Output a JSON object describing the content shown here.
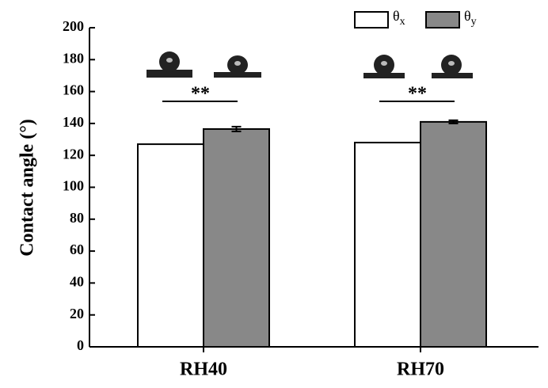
{
  "chart_data": {
    "type": "bar",
    "y_label": "Contact angle (°)",
    "categories": [
      "RH40",
      "RH70"
    ],
    "series": [
      {
        "name": "θx",
        "color": "#ffffff",
        "values": [
          127,
          128
        ]
      },
      {
        "name": "θy",
        "color": "#888888",
        "values": [
          136.5,
          141
        ],
        "errors": [
          1.5,
          1
        ]
      }
    ],
    "annotations": [
      "**",
      "**"
    ],
    "ylim": [
      0,
      200
    ],
    "yticks": [
      0,
      20,
      40,
      60,
      80,
      100,
      120,
      140,
      160,
      180,
      200
    ],
    "legend": "top-right"
  }
}
